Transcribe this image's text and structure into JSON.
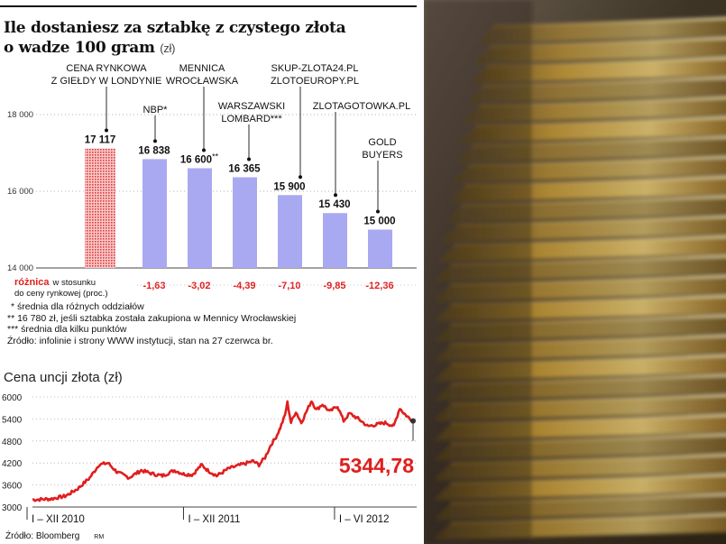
{
  "title_line1": "Ile dostaniesz za sztabkę z czystego złota",
  "title_line2": "o wadze 100 gram",
  "title_unit": "(zł)",
  "chart_data": [
    {
      "type": "bar",
      "title": "Ile dostaniesz za sztabkę z czystego złota o wadze 100 gram (zł)",
      "ylim": [
        14000,
        18000
      ],
      "yticks": [
        "14 000",
        "16 000",
        "18 000"
      ],
      "ytick_values": [
        14000,
        16000,
        18000
      ],
      "categories": [
        "CENA RYNKOWA Z GIEŁDY W LONDYNIE",
        "NBP*",
        "MENNICA WROCŁAWSKA",
        "WARSZAWSKI LOMBARD***",
        "SKUP-ZLOTA24.PL ZLOTOEUROPY.PL",
        "ZLOTAGOTOWKA.PL",
        "GOLD BUYERS"
      ],
      "values": [
        17117,
        16838,
        16600,
        16365,
        15900,
        15430,
        15000
      ],
      "value_labels": [
        "17 117",
        "16 838",
        "16 600",
        "16 365",
        "15 900",
        "15 430",
        "15 000"
      ],
      "value_suffixes": [
        "",
        "",
        "**",
        "",
        "",
        "",
        ""
      ],
      "diff_labels": [
        "",
        "-1,63",
        "-3,02",
        "-4,39",
        "-7,10",
        "-9,85",
        "-12,36"
      ],
      "colors": {
        "market": "#e23b3b",
        "bars": "#a9a9f2",
        "diff": "#e01e1e"
      }
    },
    {
      "type": "line",
      "title": "Cena uncji złota (zł)",
      "ylim": [
        3000,
        6000
      ],
      "yticks": [
        "3000",
        "3600",
        "4200",
        "4800",
        "5400",
        "6000"
      ],
      "ytick_values": [
        3000,
        3600,
        4200,
        4800,
        5400,
        6000
      ],
      "x_labels": [
        "I – XII 2010",
        "I – XII 2011",
        "I – VI 2012"
      ],
      "x_label_index": [
        0,
        250,
        500
      ],
      "x_count": 630,
      "last_value_label": "5344,78",
      "anchors": [
        [
          0,
          3200
        ],
        [
          30,
          3220
        ],
        [
          55,
          3300
        ],
        [
          75,
          3500
        ],
        [
          95,
          3800
        ],
        [
          110,
          4150
        ],
        [
          125,
          4200
        ],
        [
          140,
          3950
        ],
        [
          160,
          3800
        ],
        [
          180,
          4000
        ],
        [
          200,
          3900
        ],
        [
          215,
          3850
        ],
        [
          235,
          4000
        ],
        [
          250,
          3900
        ],
        [
          265,
          3880
        ],
        [
          280,
          4150
        ],
        [
          290,
          4000
        ],
        [
          305,
          3850
        ],
        [
          325,
          4050
        ],
        [
          345,
          4150
        ],
        [
          365,
          4250
        ],
        [
          375,
          4150
        ],
        [
          385,
          4350
        ],
        [
          395,
          4700
        ],
        [
          403,
          4900
        ],
        [
          410,
          5150
        ],
        [
          418,
          5500
        ],
        [
          422,
          5850
        ],
        [
          428,
          5300
        ],
        [
          436,
          5600
        ],
        [
          445,
          5300
        ],
        [
          455,
          5650
        ],
        [
          462,
          5900
        ],
        [
          470,
          5650
        ],
        [
          480,
          5800
        ],
        [
          492,
          5600
        ],
        [
          505,
          5750
        ],
        [
          515,
          5350
        ],
        [
          525,
          5550
        ],
        [
          540,
          5400
        ],
        [
          555,
          5200
        ],
        [
          570,
          5250
        ],
        [
          585,
          5300
        ],
        [
          598,
          5200
        ],
        [
          608,
          5700
        ],
        [
          615,
          5550
        ],
        [
          622,
          5450
        ],
        [
          630,
          5345
        ]
      ],
      "colors": {
        "line": "#e01e1e",
        "last_label": "#e01e1e"
      }
    }
  ],
  "diff_label_line1": "różnica",
  "diff_label_line1b": "w stosunku",
  "diff_label_line2": "do ceny rynkowej (proc.)",
  "footnote_1": "* średnia dla różnych oddziałów",
  "footnote_2": "** 16 780 zł, jeśli sztabka została zakupiona w Mennicy Wrocławskiej",
  "footnote_3": "*** średnia dla kilku punktów",
  "source_1": "Źródło: infolinie i strony WWW instytucji, stan na 27 czerwca br.",
  "source_2": "Źródło: Bloomberg",
  "author_initials": "RM"
}
